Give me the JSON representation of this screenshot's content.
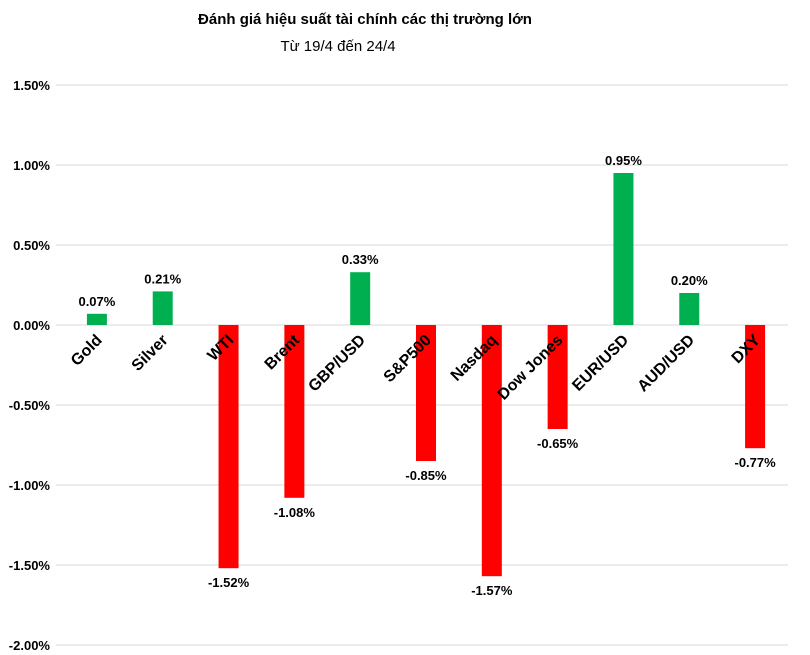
{
  "chart_data": {
    "type": "bar",
    "title": "Đánh giá hiệu suất tài chính các thị trường lớn",
    "subtitle": "Từ 19/4 đến 24/4",
    "xlabel": "",
    "ylabel": "",
    "categories": [
      "Gold",
      "Silver",
      "WTI",
      "Brent",
      "GBP/USD",
      "S&P500",
      "Nasdaq",
      "Dow Jones",
      "EUR/USD",
      "AUD/USD",
      "DXY"
    ],
    "values": [
      0.07,
      0.21,
      -1.52,
      -1.08,
      0.33,
      -0.85,
      -1.57,
      -0.65,
      0.95,
      0.2,
      -0.77
    ],
    "data_labels": [
      "0.07%",
      "0.21%",
      "-1.52%",
      "-1.08%",
      "0.33%",
      "-0.85%",
      "-1.57%",
      "-0.65%",
      "0.95%",
      "0.20%",
      "-0.77%"
    ],
    "ylim": [
      -2.0,
      1.5
    ],
    "yticks": [
      1.5,
      1.0,
      0.5,
      0.0,
      -0.5,
      -1.0,
      -1.5,
      -2.0
    ],
    "ytick_labels": [
      "1.50%",
      "1.00%",
      "0.50%",
      "0.00%",
      "-0.50%",
      "-1.00%",
      "-1.50%",
      "-2.00%"
    ],
    "grid": true,
    "colors": {
      "positive": "#00b050",
      "negative": "#ff0000",
      "grid": "#d9d9d9"
    }
  }
}
